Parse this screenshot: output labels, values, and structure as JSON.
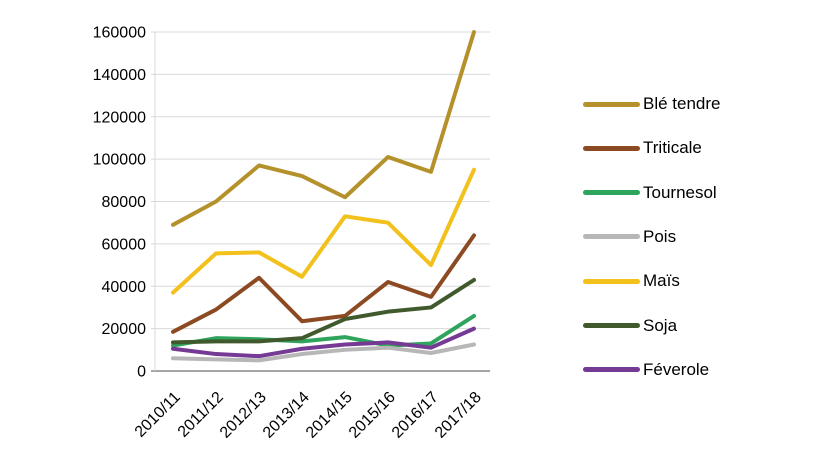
{
  "chart_data": {
    "type": "line",
    "title": "",
    "xlabel": "",
    "ylabel": "",
    "categories": [
      "2010/11",
      "2011/12",
      "2012/13",
      "2013/14",
      "2014/15",
      "2015/16",
      "2016/17",
      "2017/18"
    ],
    "series": [
      {
        "name": "Blé tendre",
        "color": "#B5912B",
        "values": [
          69000,
          80000,
          97000,
          92000,
          82000,
          101000,
          94000,
          160000
        ]
      },
      {
        "name": "Triticale",
        "color": "#8C4A23",
        "values": [
          18500,
          29000,
          44000,
          23500,
          26000,
          42000,
          35000,
          64000
        ]
      },
      {
        "name": "Tournesol",
        "color": "#2EA45C",
        "values": [
          12000,
          15500,
          15000,
          14000,
          16000,
          12000,
          13000,
          26000
        ]
      },
      {
        "name": "Pois",
        "color": "#B7B7B7",
        "values": [
          6000,
          5500,
          5000,
          8000,
          10000,
          11000,
          8500,
          12500
        ]
      },
      {
        "name": "Maïs",
        "color": "#F2C11C",
        "values": [
          37000,
          55500,
          56000,
          44500,
          73000,
          70000,
          50000,
          95000
        ]
      },
      {
        "name": "Soja",
        "color": "#415A2D",
        "values": [
          13500,
          14000,
          14000,
          15500,
          24500,
          28000,
          30000,
          43000
        ]
      },
      {
        "name": "Féverole",
        "color": "#753A93",
        "values": [
          10500,
          8000,
          7000,
          10500,
          12500,
          13500,
          11000,
          20000
        ]
      }
    ],
    "ylim": [
      0,
      160000
    ],
    "ytick_step": 20000,
    "grid": "horizontal",
    "legend_position": "right"
  },
  "axes": {
    "y_tick_labels": [
      "0",
      "20000",
      "40000",
      "60000",
      "80000",
      "100000",
      "120000",
      "140000",
      "160000"
    ]
  },
  "colors": {
    "grid": "#D9D9D9",
    "axis": "#A6A6A6",
    "background": "#FFFFFF"
  }
}
